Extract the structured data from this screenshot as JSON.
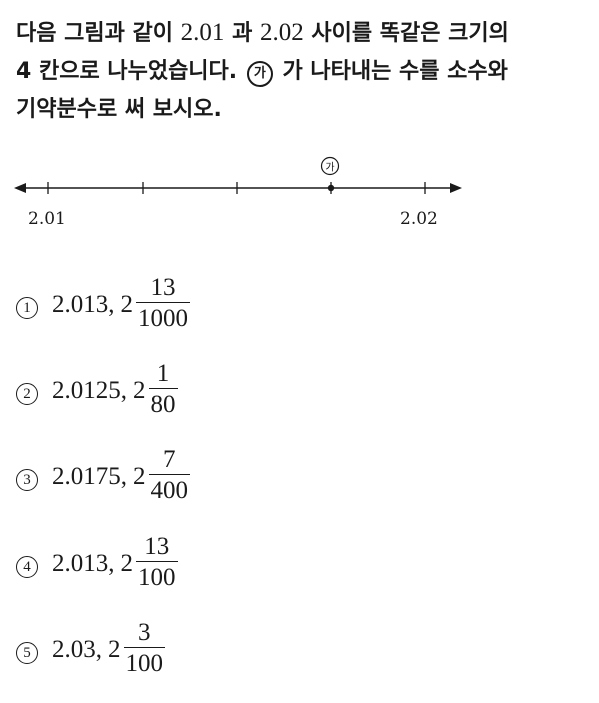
{
  "question": {
    "line1_a": "다음 그림과 같이 ",
    "num_a": "2.01",
    "line1_b": " 과 ",
    "num_b": "2.02",
    "line1_c": " 사이를 똑같은 크기의",
    "line2_a": "4 칸으로 나누었습니다. ",
    "marker": "가",
    "line2_b": " 가 나타내는 수를 소수와",
    "line3": "기약분수로 써 보시오."
  },
  "number_line": {
    "marker_label": "가",
    "left_label": "2.01",
    "right_label": "2.02"
  },
  "choices": [
    {
      "num": "1",
      "decimal": "2.013,",
      "whole": "2",
      "numerator": "13",
      "denominator": "1000"
    },
    {
      "num": "2",
      "decimal": "2.0125,",
      "whole": "2",
      "numerator": "1",
      "denominator": "80"
    },
    {
      "num": "3",
      "decimal": "2.0175,",
      "whole": "2",
      "numerator": "7",
      "denominator": "400"
    },
    {
      "num": "4",
      "decimal": "2.013,",
      "whole": "2",
      "numerator": "13",
      "denominator": "100"
    },
    {
      "num": "5",
      "decimal": "2.03,",
      "whole": "2",
      "numerator": "3",
      "denominator": "100"
    }
  ]
}
